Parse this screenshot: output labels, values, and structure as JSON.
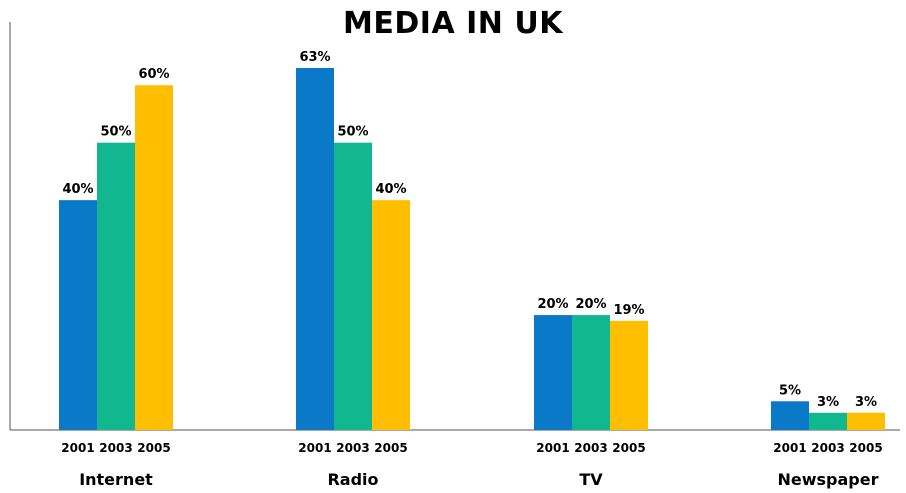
{
  "chart_data": {
    "type": "bar",
    "title": "MEDIA IN UK",
    "categories": [
      "Internet",
      "Radio",
      "TV",
      "Newspaper"
    ],
    "series": [
      {
        "name": "2001",
        "values": [
          40,
          63,
          20,
          5
        ]
      },
      {
        "name": "2003",
        "values": [
          50,
          50,
          20,
          3
        ]
      },
      {
        "name": "2005",
        "values": [
          60,
          40,
          19,
          3
        ]
      }
    ],
    "value_labels": [
      [
        "40%",
        "50%",
        "60%"
      ],
      [
        "63%",
        "50%",
        "40%"
      ],
      [
        "20%",
        "20%",
        "19%"
      ],
      [
        "5%",
        "3%",
        "3%"
      ]
    ],
    "year_labels": [
      "2001",
      "2003",
      "2005"
    ],
    "colors": [
      "#0a79c8",
      "#13b78f",
      "#ffbf00"
    ],
    "xlabel": "",
    "ylabel": "",
    "ylim": [
      0,
      67
    ],
    "grid": false,
    "legend": "none"
  }
}
